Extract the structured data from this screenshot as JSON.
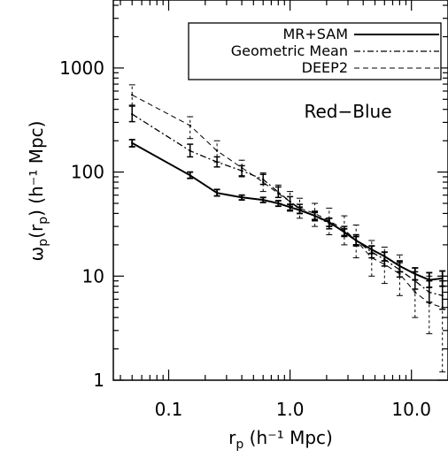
{
  "chart_data": {
    "type": "line",
    "annotation": "Red−Blue",
    "xlabel": {
      "main": "r",
      "sub": "p",
      "unit": " (h⁻¹ Mpc)"
    },
    "ylabel": {
      "main": "ω",
      "sub1": "p",
      "mid": "(r",
      "sub2": "p",
      "end": ") (h⁻¹ Mpc)"
    },
    "xscale": "log",
    "yscale": "log",
    "xlim": [
      0.035,
      20
    ],
    "ylim": [
      1,
      4500
    ],
    "xticks": [
      {
        "v": 0.1,
        "label": "0.1"
      },
      {
        "v": 1.0,
        "label": "1.0"
      },
      {
        "v": 10.0,
        "label": "10.0"
      }
    ],
    "yticks": [
      {
        "v": 1,
        "label": "1"
      },
      {
        "v": 10,
        "label": "10"
      },
      {
        "v": 100,
        "label": "100"
      },
      {
        "v": 1000,
        "label": "1000"
      }
    ],
    "grid": false,
    "legend_position": "top-right",
    "legend": [
      "MR+SAM",
      "Geometric Mean",
      "DEEP2"
    ],
    "series": [
      {
        "name": "MR+SAM",
        "style": "solid",
        "points": [
          {
            "x": 0.05,
            "y": 190,
            "lo": 175,
            "hi": 205
          },
          {
            "x": 0.15,
            "y": 93,
            "lo": 87,
            "hi": 100
          },
          {
            "x": 0.25,
            "y": 63,
            "lo": 59,
            "hi": 68
          },
          {
            "x": 0.4,
            "y": 57,
            "lo": 54,
            "hi": 60
          },
          {
            "x": 0.6,
            "y": 54,
            "lo": 51,
            "hi": 57
          },
          {
            "x": 0.8,
            "y": 50,
            "lo": 47,
            "hi": 53
          },
          {
            "x": 1.0,
            "y": 46,
            "lo": 43,
            "hi": 49
          },
          {
            "x": 1.2,
            "y": 43,
            "lo": 40,
            "hi": 46
          },
          {
            "x": 1.6,
            "y": 38,
            "lo": 35,
            "hi": 41
          },
          {
            "x": 2.1,
            "y": 33,
            "lo": 30,
            "hi": 36
          },
          {
            "x": 2.8,
            "y": 26.5,
            "lo": 24.5,
            "hi": 28.5
          },
          {
            "x": 3.5,
            "y": 22,
            "lo": 20,
            "hi": 24
          },
          {
            "x": 4.7,
            "y": 18,
            "lo": 16.5,
            "hi": 19.5
          },
          {
            "x": 6.0,
            "y": 15.5,
            "lo": 14,
            "hi": 17
          },
          {
            "x": 8.0,
            "y": 12.5,
            "lo": 11,
            "hi": 14
          },
          {
            "x": 10.7,
            "y": 10.5,
            "lo": 9.2,
            "hi": 12
          },
          {
            "x": 14.0,
            "y": 9.2,
            "lo": 7.8,
            "hi": 10.8
          },
          {
            "x": 18.0,
            "y": 9.5,
            "lo": 8,
            "hi": 11.2
          }
        ]
      },
      {
        "name": "Geometric Mean",
        "style": "dashdot",
        "points": [
          {
            "x": 0.05,
            "y": 360,
            "lo": 305,
            "hi": 430
          },
          {
            "x": 0.15,
            "y": 160,
            "lo": 140,
            "hi": 185
          },
          {
            "x": 0.25,
            "y": 125,
            "lo": 112,
            "hi": 140
          },
          {
            "x": 0.4,
            "y": 103,
            "lo": 92,
            "hi": 115
          },
          {
            "x": 0.6,
            "y": 85,
            "lo": 76,
            "hi": 95
          },
          {
            "x": 0.8,
            "y": 64,
            "lo": 57,
            "hi": 72
          },
          {
            "x": 1.0,
            "y": 52,
            "lo": 47,
            "hi": 58
          },
          {
            "x": 1.2,
            "y": 44,
            "lo": 40,
            "hi": 49
          },
          {
            "x": 1.6,
            "y": 38,
            "lo": 34,
            "hi": 42
          },
          {
            "x": 2.1,
            "y": 32,
            "lo": 28.5,
            "hi": 36
          },
          {
            "x": 2.8,
            "y": 27,
            "lo": 24,
            "hi": 30
          },
          {
            "x": 3.5,
            "y": 22,
            "lo": 19.5,
            "hi": 25
          },
          {
            "x": 4.7,
            "y": 17,
            "lo": 15,
            "hi": 19.5
          },
          {
            "x": 6.0,
            "y": 14.5,
            "lo": 12.5,
            "hi": 17
          },
          {
            "x": 8.0,
            "y": 11.5,
            "lo": 9.8,
            "hi": 13.5
          },
          {
            "x": 10.7,
            "y": 9,
            "lo": 7.5,
            "hi": 11
          },
          {
            "x": 14.0,
            "y": 7,
            "lo": 5.6,
            "hi": 9
          },
          {
            "x": 18.0,
            "y": 6.5,
            "lo": 4.8,
            "hi": 9
          }
        ]
      },
      {
        "name": "DEEP2",
        "style": "dashed",
        "points": [
          {
            "x": 0.05,
            "y": 550,
            "lo": 440,
            "hi": 690
          },
          {
            "x": 0.15,
            "y": 280,
            "lo": 210,
            "hi": 340
          },
          {
            "x": 0.25,
            "y": 160,
            "lo": 125,
            "hi": 200
          },
          {
            "x": 0.4,
            "y": 110,
            "lo": 90,
            "hi": 130
          },
          {
            "x": 0.6,
            "y": 80,
            "lo": 65,
            "hi": 98
          },
          {
            "x": 0.8,
            "y": 62,
            "lo": 50,
            "hi": 75
          },
          {
            "x": 1.0,
            "y": 52,
            "lo": 42,
            "hi": 65
          },
          {
            "x": 1.2,
            "y": 45,
            "lo": 36,
            "hi": 56
          },
          {
            "x": 1.6,
            "y": 40,
            "lo": 30,
            "hi": 50
          },
          {
            "x": 2.1,
            "y": 34,
            "lo": 25,
            "hi": 45
          },
          {
            "x": 2.8,
            "y": 28,
            "lo": 20,
            "hi": 38
          },
          {
            "x": 3.5,
            "y": 22,
            "lo": 15,
            "hi": 31
          },
          {
            "x": 4.7,
            "y": 15,
            "lo": 10,
            "hi": 22
          },
          {
            "x": 6.0,
            "y": 13,
            "lo": 8.5,
            "hi": 19
          },
          {
            "x": 8.0,
            "y": 10.5,
            "lo": 6.5,
            "hi": 16
          },
          {
            "x": 10.7,
            "y": 7,
            "lo": 4,
            "hi": 12
          },
          {
            "x": 14.0,
            "y": 5.5,
            "lo": 2.8,
            "hi": 10
          },
          {
            "x": 18.0,
            "y": 5,
            "lo": 1.2,
            "hi": 10
          }
        ]
      }
    ]
  }
}
